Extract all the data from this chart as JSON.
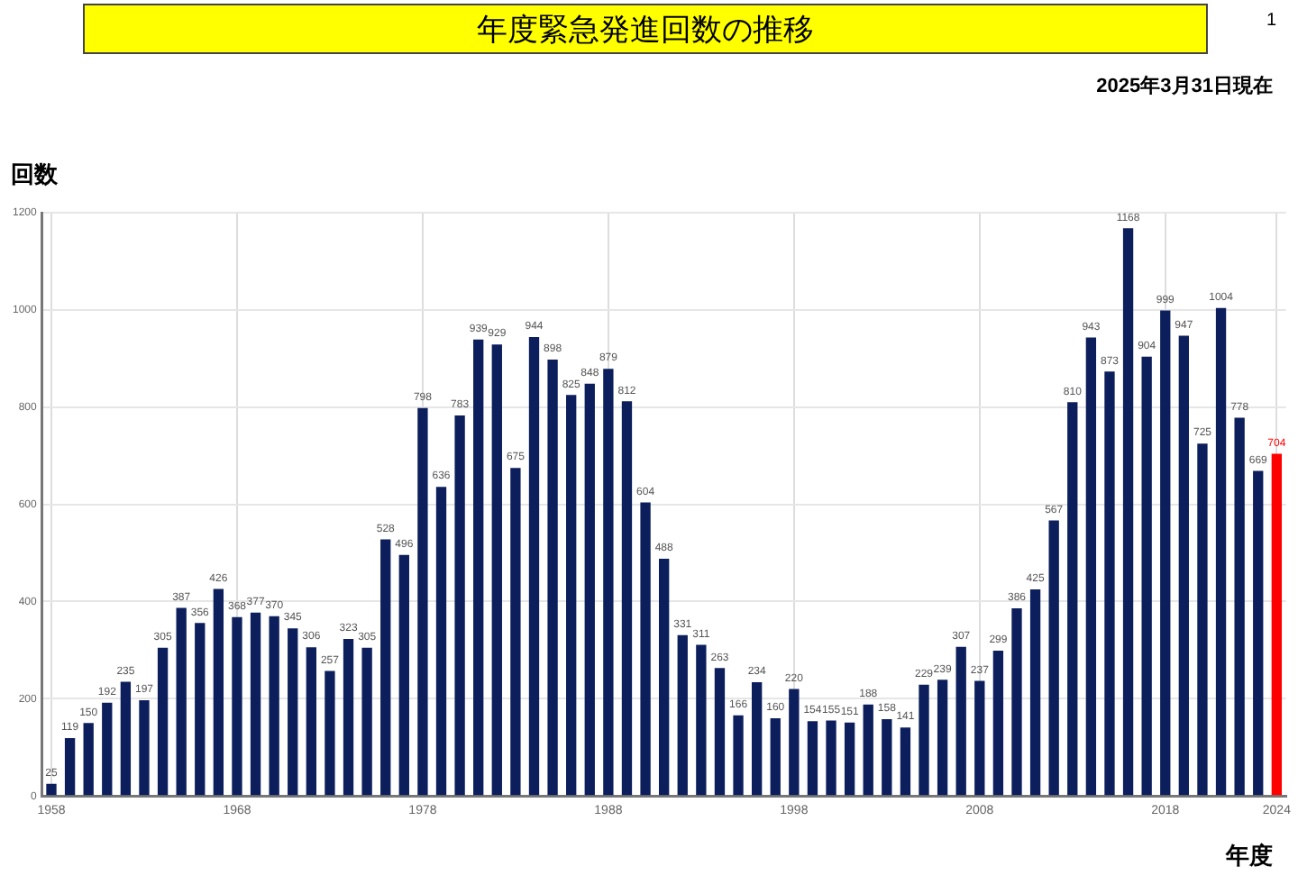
{
  "chart_data": {
    "type": "bar",
    "title": "年度緊急発進回数の推移",
    "subtitle": "2025年3月31日現在",
    "ylabel": "回数",
    "xlabel": "年度",
    "annotations": [
      "1"
    ],
    "categories": [
      "1958",
      null,
      null,
      null,
      null,
      null,
      null,
      null,
      null,
      null,
      "1968",
      null,
      null,
      null,
      null,
      null,
      null,
      null,
      null,
      null,
      "1978",
      null,
      null,
      null,
      null,
      null,
      null,
      null,
      null,
      null,
      "1988",
      null,
      null,
      null,
      null,
      null,
      null,
      null,
      null,
      null,
      "1998",
      null,
      null,
      null,
      null,
      null,
      null,
      null,
      null,
      null,
      "2008",
      null,
      null,
      null,
      null,
      null,
      null,
      null,
      null,
      null,
      "2018",
      null,
      null,
      null,
      null,
      null,
      "2024"
    ],
    "values": [
      25,
      119,
      150,
      192,
      235,
      197,
      305,
      387,
      356,
      426,
      368,
      377,
      370,
      345,
      306,
      257,
      323,
      305,
      528,
      496,
      798,
      636,
      783,
      939,
      929,
      675,
      944,
      898,
      825,
      848,
      879,
      812,
      604,
      488,
      331,
      311,
      263,
      166,
      234,
      160,
      220,
      154,
      155,
      151,
      188,
      158,
      141,
      229,
      239,
      307,
      237,
      299,
      386,
      425,
      567,
      810,
      943,
      873,
      1168,
      904,
      999,
      947,
      725,
      1004,
      778,
      669,
      704
    ],
    "colors": [
      "#0c1f5c",
      "#0c1f5c",
      "#0c1f5c",
      "#0c1f5c",
      "#0c1f5c",
      "#0c1f5c",
      "#0c1f5c",
      "#0c1f5c",
      "#0c1f5c",
      "#0c1f5c",
      "#0c1f5c",
      "#0c1f5c",
      "#0c1f5c",
      "#0c1f5c",
      "#0c1f5c",
      "#0c1f5c",
      "#0c1f5c",
      "#0c1f5c",
      "#0c1f5c",
      "#0c1f5c",
      "#0c1f5c",
      "#0c1f5c",
      "#0c1f5c",
      "#0c1f5c",
      "#0c1f5c",
      "#0c1f5c",
      "#0c1f5c",
      "#0c1f5c",
      "#0c1f5c",
      "#0c1f5c",
      "#0c1f5c",
      "#0c1f5c",
      "#0c1f5c",
      "#0c1f5c",
      "#0c1f5c",
      "#0c1f5c",
      "#0c1f5c",
      "#0c1f5c",
      "#0c1f5c",
      "#0c1f5c",
      "#0c1f5c",
      "#0c1f5c",
      "#0c1f5c",
      "#0c1f5c",
      "#0c1f5c",
      "#0c1f5c",
      "#0c1f5c",
      "#0c1f5c",
      "#0c1f5c",
      "#0c1f5c",
      "#0c1f5c",
      "#0c1f5c",
      "#0c1f5c",
      "#0c1f5c",
      "#0c1f5c",
      "#0c1f5c",
      "#0c1f5c",
      "#0c1f5c",
      "#0c1f5c",
      "#0c1f5c",
      "#0c1f5c",
      "#0c1f5c",
      "#0c1f5c",
      "#0c1f5c",
      "#0c1f5c",
      "#0c1f5c",
      "#ff0000"
    ],
    "ylim": [
      0,
      1200
    ],
    "yticks": [
      0,
      200,
      400,
      600,
      800,
      1000,
      1200
    ],
    "grid": true,
    "legend": false,
    "data_labels": true
  }
}
